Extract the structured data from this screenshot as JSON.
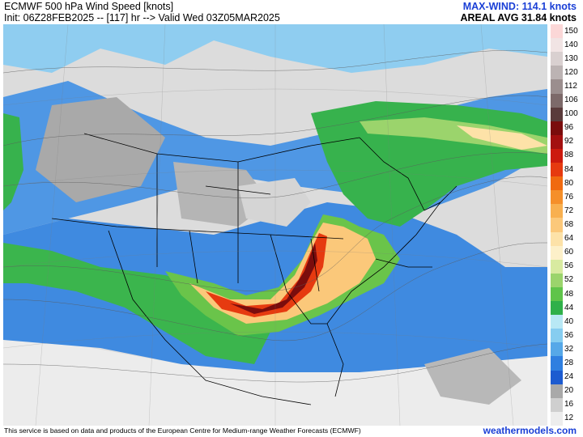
{
  "header": {
    "title": "ECMWF 500 hPa Wind Speed [knots]",
    "init_line": "Init: 06Z28FEB2025 -- [117] hr --> Valid Wed 03Z05MAR2025",
    "max_wind": "MAX-WIND: 114.1 knots",
    "areal_avg": "AREAL AVG 31.84 knots"
  },
  "colorbar": {
    "levels": [
      {
        "label": "150",
        "color": "#fbd7d7"
      },
      {
        "label": "140",
        "color": "#f1e4e4"
      },
      {
        "label": "130",
        "color": "#d9d0d0"
      },
      {
        "label": "120",
        "color": "#bcb3b3"
      },
      {
        "label": "112",
        "color": "#9b8e8e"
      },
      {
        "label": "106",
        "color": "#7d6a6a"
      },
      {
        "label": "100",
        "color": "#5a3b3b"
      },
      {
        "label": "96",
        "color": "#7a0d0d"
      },
      {
        "label": "92",
        "color": "#a31010"
      },
      {
        "label": "88",
        "color": "#cc1a0e"
      },
      {
        "label": "84",
        "color": "#e63a10"
      },
      {
        "label": "80",
        "color": "#f06a10"
      },
      {
        "label": "76",
        "color": "#f58f2a"
      },
      {
        "label": "72",
        "color": "#f8b050"
      },
      {
        "label": "68",
        "color": "#fbc87a"
      },
      {
        "label": "64",
        "color": "#fde2a8"
      },
      {
        "label": "60",
        "color": "#fdf0c9"
      },
      {
        "label": "56",
        "color": "#d8eaa0"
      },
      {
        "label": "52",
        "color": "#9bd46c"
      },
      {
        "label": "48",
        "color": "#5fc44a"
      },
      {
        "label": "44",
        "color": "#2fb04a"
      },
      {
        "label": "40",
        "color": "#b8e8f5"
      },
      {
        "label": "36",
        "color": "#86cdf0"
      },
      {
        "label": "32",
        "color": "#56a8e8"
      },
      {
        "label": "28",
        "color": "#2f7fe0"
      },
      {
        "label": "24",
        "color": "#1c5bd0"
      },
      {
        "label": "20",
        "color": "#a9a9a9"
      },
      {
        "label": "16",
        "color": "#cfcfcf"
      },
      {
        "label": "12",
        "color": "#ededed"
      }
    ]
  },
  "footer": {
    "credit": "This service is based on data and products of the European Centre for Medium-range Weather Forecasts (ECMWF)",
    "brand": "weathermodels.com"
  }
}
